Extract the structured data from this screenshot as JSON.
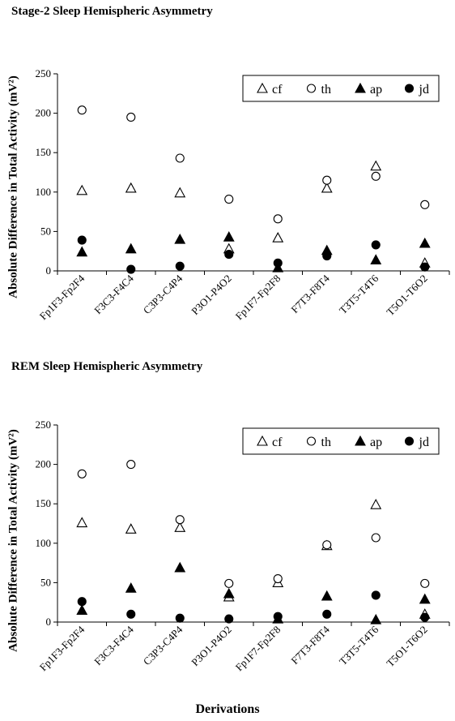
{
  "chart_data": [
    {
      "type": "scatter",
      "title": "Stage-2 Sleep Hemispheric Asymmetry",
      "ylabel": "Absolute Difference in Total Activity (mV²)",
      "xlabel": "",
      "ylim": [
        0,
        250
      ],
      "yticks": [
        0,
        50,
        100,
        150,
        200,
        250
      ],
      "categories": [
        "Fp1F3-Fp2F4",
        "F3C3-F4C4",
        "C3P3-C4P4",
        "P3O1-P4O2",
        "Fp1F7-Fp2F8",
        "F7T3-F8T4",
        "T3T5-T4T6",
        "T5O1-T6O2"
      ],
      "legend_position": "top-right",
      "grid": false,
      "series": [
        {
          "name": "cf",
          "marker": "open-triangle",
          "values": [
            102,
            105,
            99,
            28,
            42,
            105,
            133,
            10
          ]
        },
        {
          "name": "th",
          "marker": "open-circle",
          "values": [
            204,
            195,
            143,
            91,
            66,
            115,
            120,
            84
          ]
        },
        {
          "name": "ap",
          "marker": "filled-triangle",
          "values": [
            24,
            28,
            40,
            43,
            4,
            26,
            14,
            35
          ]
        },
        {
          "name": "jd",
          "marker": "filled-circle",
          "values": [
            39,
            2,
            6,
            21,
            10,
            19,
            33,
            5
          ]
        }
      ]
    },
    {
      "type": "scatter",
      "title": "REM Sleep Hemispheric Asymmetry",
      "ylabel": "Absolute Difference in Total Activity (mV²)",
      "xlabel": "Derivations",
      "ylim": [
        0,
        250
      ],
      "yticks": [
        0,
        50,
        100,
        150,
        200,
        250
      ],
      "categories": [
        "Fp1F3-Fp2F4",
        "F3C3-F4C4",
        "C3P3-C4P4",
        "P3O1-P4O2",
        "Fp1F7-Fp2F8",
        "F7T3-F8T4",
        "T3T5-T4T6",
        "T5O1-T6O2"
      ],
      "legend_position": "top-right",
      "grid": false,
      "series": [
        {
          "name": "cf",
          "marker": "open-triangle",
          "values": [
            126,
            118,
            120,
            32,
            50,
            97,
            149,
            10
          ]
        },
        {
          "name": "th",
          "marker": "open-circle",
          "values": [
            188,
            200,
            130,
            49,
            55,
            98,
            107,
            49
          ]
        },
        {
          "name": "ap",
          "marker": "filled-triangle",
          "values": [
            15,
            43,
            69,
            36,
            4,
            33,
            3,
            29
          ]
        },
        {
          "name": "jd",
          "marker": "filled-circle",
          "values": [
            26,
            10,
            5,
            4,
            7,
            10,
            34,
            6
          ]
        }
      ]
    }
  ]
}
